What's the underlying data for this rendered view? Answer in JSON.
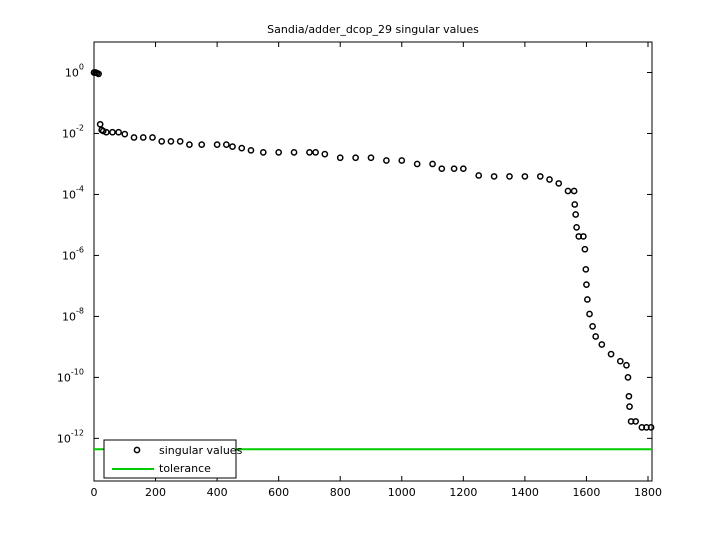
{
  "chart_data": {
    "type": "scatter",
    "title": "Sandia/adder_dcop_29 singular values",
    "log_y": true,
    "xlim": [
      0,
      1813
    ],
    "xticks": [
      0,
      200,
      400,
      600,
      800,
      1000,
      1200,
      1400,
      1600,
      1800
    ],
    "ylim": [
      4e-14,
      10
    ],
    "yticks": [
      {
        "value": 1,
        "label": "10^0"
      },
      {
        "value": 0.01,
        "label": "10^-2"
      },
      {
        "value": 0.0001,
        "label": "10^-4"
      },
      {
        "value": 1e-06,
        "label": "10^-6"
      },
      {
        "value": 1e-08,
        "label": "10^-8"
      },
      {
        "value": 1e-10,
        "label": "10^-10"
      },
      {
        "value": 1e-12,
        "label": "10^-12"
      }
    ],
    "legend": "lower left",
    "series": [
      {
        "name": "singular values",
        "mode": "markers",
        "color": "#000000",
        "x": [
          0,
          5,
          10,
          15,
          20,
          25,
          30,
          40,
          60,
          80,
          100,
          130,
          160,
          190,
          220,
          250,
          280,
          310,
          350,
          400,
          430,
          450,
          480,
          510,
          550,
          600,
          650,
          700,
          720,
          750,
          800,
          850,
          900,
          950,
          1000,
          1050,
          1100,
          1130,
          1170,
          1200,
          1250,
          1300,
          1350,
          1400,
          1450,
          1480,
          1510,
          1540,
          1560,
          1562,
          1565,
          1568,
          1575,
          1590,
          1595,
          1598,
          1600,
          1603,
          1610,
          1620,
          1630,
          1650,
          1680,
          1710,
          1730,
          1735,
          1738,
          1740,
          1745,
          1760,
          1780,
          1795,
          1810
        ],
        "values": [
          1.0,
          1.0,
          0.95,
          0.9,
          0.02,
          0.013,
          0.012,
          0.011,
          0.011,
          0.011,
          0.0095,
          0.0074,
          0.0074,
          0.0074,
          0.0055,
          0.0055,
          0.0055,
          0.0043,
          0.0043,
          0.0043,
          0.0043,
          0.0037,
          0.0033,
          0.0028,
          0.0024,
          0.0024,
          0.0024,
          0.0024,
          0.0024,
          0.0021,
          0.0016,
          0.0016,
          0.0016,
          0.0013,
          0.0013,
          0.001,
          0.001,
          0.0007,
          0.0007,
          0.0007,
          0.00042,
          0.00039,
          0.00039,
          0.00039,
          0.00039,
          0.00031,
          0.00023,
          0.00013,
          0.00013,
          4.7e-05,
          2.2e-05,
          8.3e-06,
          4.2e-06,
          4.2e-06,
          1.6e-06,
          3.5e-07,
          1.1e-07,
          3.6e-08,
          1.2e-08,
          4.7e-09,
          2.2e-09,
          1.2e-09,
          5.8e-10,
          3.4e-10,
          2.5e-10,
          1e-10,
          2.4e-11,
          1.1e-11,
          3.6e-12,
          3.6e-12,
          2.3e-12,
          2.3e-12,
          2.3e-12
        ]
      },
      {
        "name": "tolerance",
        "mode": "line",
        "color": "#00cc00",
        "x": [
          0,
          1813
        ],
        "values": [
          4.4e-13,
          4.4e-13
        ]
      }
    ]
  }
}
